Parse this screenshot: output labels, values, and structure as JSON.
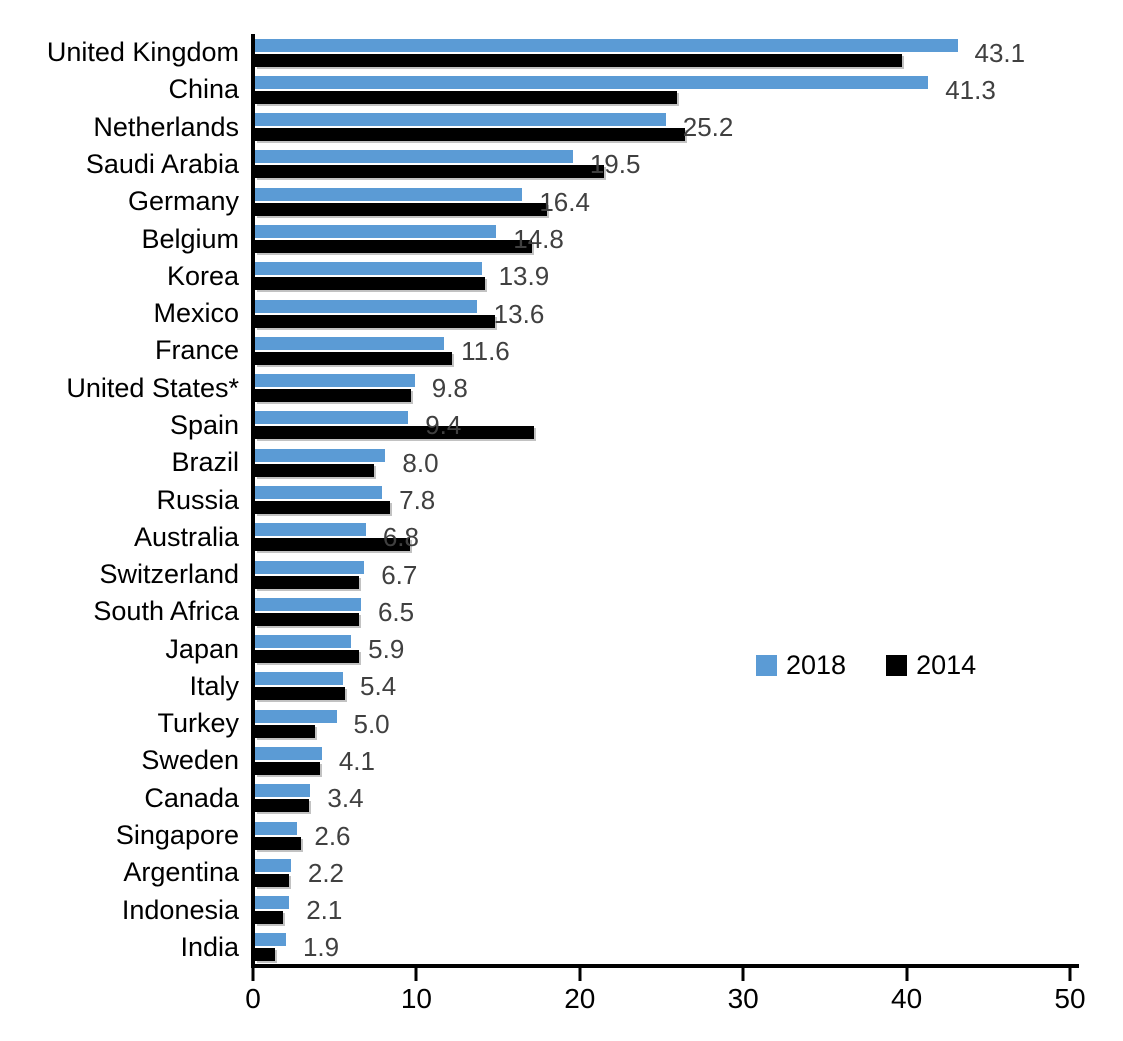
{
  "chart_data": {
    "type": "bar",
    "orientation": "horizontal",
    "title": "",
    "xlabel": "",
    "ylabel": "",
    "xlim": [
      0,
      50
    ],
    "x_ticks": [
      0,
      10,
      20,
      30,
      40,
      50
    ],
    "grid": false,
    "value_label_color": "#404040",
    "axis_color": "#000000",
    "categories": [
      "United Kingdom",
      "China",
      "Netherlands",
      "Saudi Arabia",
      "Germany",
      "Belgium",
      "Korea",
      "Mexico",
      "France",
      "United States*",
      "Spain",
      "Brazil",
      "Russia",
      "Australia",
      "Switzerland",
      "South Africa",
      "Japan",
      "Italy",
      "Turkey",
      "Sweden",
      "Canada",
      "Singapore",
      "Argentina",
      "Indonesia",
      "India"
    ],
    "series": [
      {
        "name": "2018",
        "color": "#5B9BD5",
        "data_labels": true,
        "values": [
          43.1,
          41.3,
          25.2,
          19.5,
          16.4,
          14.8,
          13.9,
          13.6,
          11.6,
          9.8,
          9.4,
          8.0,
          7.8,
          6.8,
          6.7,
          6.5,
          5.9,
          5.4,
          5.0,
          4.1,
          3.4,
          2.6,
          2.2,
          2.1,
          1.9
        ]
      },
      {
        "name": "2014",
        "color": "#000000",
        "data_labels": false,
        "values": [
          39.7,
          25.9,
          26.4,
          21.4,
          17.9,
          17.0,
          14.1,
          14.7,
          12.1,
          9.6,
          17.1,
          7.3,
          8.3,
          9.5,
          6.4,
          6.4,
          6.4,
          5.5,
          3.7,
          4.0,
          3.3,
          2.8,
          2.1,
          1.7,
          1.2
        ]
      }
    ],
    "legend": {
      "position": "middle-right",
      "entries": [
        {
          "label": "2018",
          "color": "#5B9BD5"
        },
        {
          "label": "2014",
          "color": "#000000"
        }
      ]
    }
  }
}
